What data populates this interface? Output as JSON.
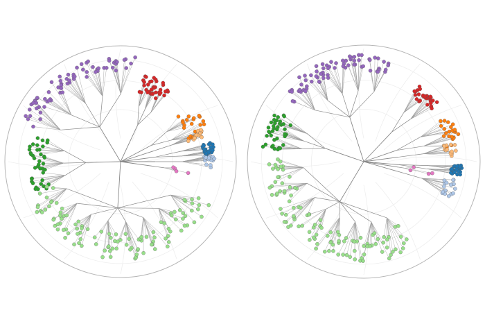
{
  "panels": [
    {
      "clusters": [
        {
          "color": "#9467bd"
        },
        {
          "color": "#d62728"
        },
        {
          "color": "#ff7f0e"
        },
        {
          "color": "#ffbb78"
        },
        {
          "color": "#1f77b4"
        },
        {
          "color": "#aec7e8"
        },
        {
          "color": "#e377c2"
        },
        {
          "color": "#2ca02c"
        },
        {
          "color": "#98df8a"
        }
      ]
    },
    {
      "clusters": [
        {
          "color": "#9467bd"
        },
        {
          "color": "#d62728"
        },
        {
          "color": "#ff7f0e"
        },
        {
          "color": "#ffbb78"
        },
        {
          "color": "#1f77b4"
        },
        {
          "color": "#aec7e8"
        },
        {
          "color": "#e377c2"
        },
        {
          "color": "#2ca02c"
        },
        {
          "color": "#98df8a"
        }
      ]
    }
  ]
}
